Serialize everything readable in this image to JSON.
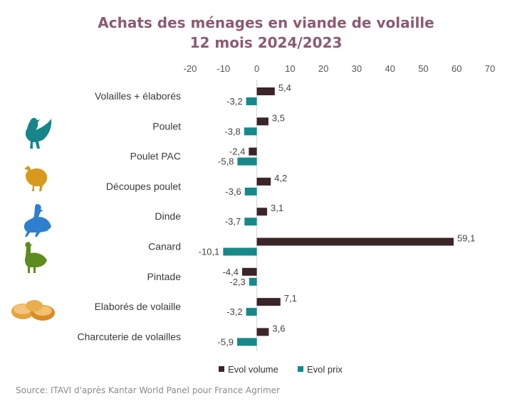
{
  "title": "Achats des ménages en viande de volaille",
  "subtitle": "12 mois 2024/2023",
  "source": "Source: ITAVI d'après Kantar World Panel pour France Agrimer",
  "colors": {
    "volume": "#3b2528",
    "prix": "#16898a",
    "title": "#8c5a73"
  },
  "icons": [
    "chicken-icon",
    "chick-icon",
    "goose-icon",
    "guinea-fowl-icon",
    "nuggets-icon"
  ],
  "chart_data": {
    "type": "bar",
    "orientation": "horizontal",
    "title": "Achats des ménages en viande de volaille",
    "subtitle": "12 mois 2024/2023",
    "categories": [
      "Volailles + élaborés",
      "Poulet",
      "Poulet PAC",
      "Découpes poulet",
      "Dinde",
      "Canard",
      "Pintade",
      "Elaborés de volaille",
      "Charcuterie de volailles"
    ],
    "series": [
      {
        "name": "Evol volume",
        "color": "#3b2528",
        "values": [
          5.4,
          3.5,
          -2.4,
          4.2,
          3.1,
          59.1,
          -4.4,
          7.1,
          3.6
        ],
        "labels": [
          "5,4",
          "3,5",
          "-2,4",
          "4,2",
          "3,1",
          "59,1",
          "-4,4",
          "7,1",
          "3,6"
        ]
      },
      {
        "name": "Evol prix",
        "color": "#16898a",
        "values": [
          -3.2,
          -3.8,
          -5.8,
          -3.6,
          -3.7,
          -10.1,
          -2.3,
          -3.2,
          -5.9
        ],
        "labels": [
          "-3,2",
          "-3,8",
          "-5,8",
          "-3,6",
          "-3,7",
          "-10,1",
          "-2,3",
          "-3,2",
          "-5,9"
        ]
      }
    ],
    "xticks": [
      -20,
      -10,
      0,
      10,
      20,
      30,
      40,
      50,
      60,
      70
    ],
    "xlim": [
      -20,
      70
    ],
    "xaxis_position": "top",
    "grid": false,
    "legend_position": "bottom"
  }
}
